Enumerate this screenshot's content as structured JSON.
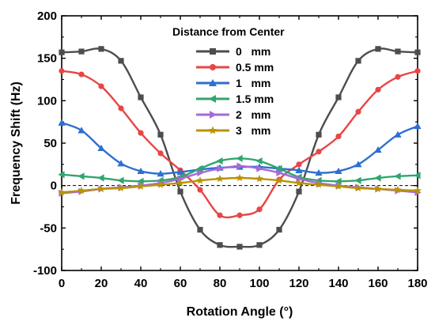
{
  "chart_data": {
    "type": "line",
    "title": "",
    "xlabel": "Rotation Angle (°)",
    "ylabel": "Frequency Shift (Hz)",
    "xlim": [
      0,
      180
    ],
    "ylim": [
      -100,
      200
    ],
    "xticks": [
      0,
      20,
      40,
      60,
      80,
      100,
      120,
      140,
      160,
      180
    ],
    "yticks": [
      -100,
      -50,
      0,
      50,
      100,
      150,
      200
    ],
    "grid": false,
    "zero_reference_line": "dashed",
    "legend": {
      "title": "Distance from Center",
      "placement": "top-center"
    },
    "series": [
      {
        "name": "0   mm",
        "color": "#4d4d4d",
        "marker": "square",
        "x": [
          0,
          10,
          20,
          30,
          40,
          50,
          60,
          70,
          80,
          90,
          100,
          110,
          120,
          130,
          140,
          150,
          160,
          170,
          180
        ],
        "y": [
          157,
          158,
          161,
          147,
          104,
          60,
          -7,
          -52,
          -70,
          -72,
          -70,
          -52,
          -7,
          60,
          104,
          147,
          161,
          158,
          157
        ]
      },
      {
        "name": "0.5 mm",
        "color": "#e84545",
        "marker": "circle",
        "x": [
          0,
          10,
          20,
          30,
          40,
          50,
          60,
          70,
          80,
          90,
          100,
          110,
          120,
          130,
          140,
          150,
          160,
          170,
          180
        ],
        "y": [
          135,
          131,
          117,
          91,
          62,
          38,
          18,
          -5,
          -35,
          -35,
          -28,
          7,
          25,
          40,
          58,
          87,
          113,
          128,
          135
        ]
      },
      {
        "name": "1   mm",
        "color": "#2e6fd0",
        "marker": "triangle",
        "x": [
          0,
          10,
          20,
          30,
          40,
          50,
          60,
          70,
          80,
          90,
          100,
          110,
          120,
          130,
          140,
          150,
          160,
          170,
          180
        ],
        "y": [
          74,
          65,
          44,
          26,
          17,
          14,
          16,
          19,
          21,
          22,
          22,
          20,
          18,
          15,
          17,
          25,
          42,
          60,
          70
        ]
      },
      {
        "name": "1.5 mm",
        "color": "#2fa66d",
        "marker": "triangle-left",
        "x": [
          0,
          10,
          20,
          30,
          40,
          50,
          60,
          70,
          80,
          90,
          100,
          110,
          120,
          130,
          140,
          150,
          160,
          170,
          180
        ],
        "y": [
          13,
          11,
          9,
          6,
          5,
          6,
          10,
          20,
          29,
          32,
          29,
          20,
          10,
          6,
          5,
          6,
          9,
          11,
          12
        ]
      },
      {
        "name": "2   mm",
        "color": "#a66ad8",
        "marker": "triangle-right",
        "x": [
          0,
          10,
          20,
          30,
          40,
          50,
          60,
          70,
          80,
          90,
          100,
          110,
          120,
          130,
          140,
          150,
          160,
          170,
          180
        ],
        "y": [
          -9,
          -7,
          -4,
          -2,
          0,
          3,
          8,
          15,
          20,
          23,
          20,
          15,
          8,
          3,
          0,
          -2,
          -4,
          -6,
          -8
        ]
      },
      {
        "name": "3   mm",
        "color": "#b89400",
        "marker": "star",
        "x": [
          0,
          10,
          20,
          30,
          40,
          50,
          60,
          70,
          80,
          90,
          100,
          110,
          120,
          130,
          140,
          150,
          160,
          170,
          180
        ],
        "y": [
          -8,
          -6,
          -4,
          -3,
          -1,
          1,
          3,
          6,
          8,
          9,
          8,
          6,
          3,
          1,
          -1,
          -3,
          -4,
          -5,
          -6
        ]
      }
    ]
  }
}
